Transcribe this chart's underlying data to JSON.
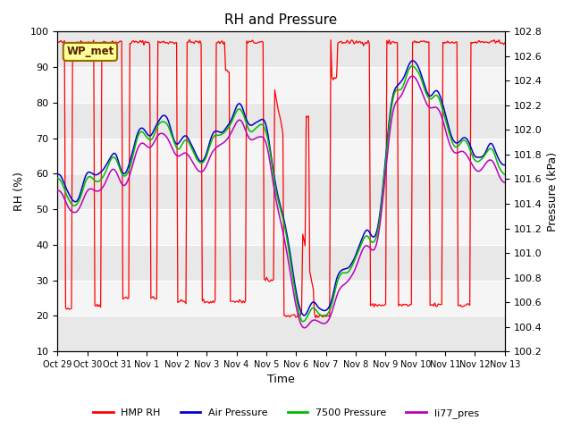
{
  "title": "RH and Pressure",
  "xlabel": "Time",
  "ylabel_left": "RH (%)",
  "ylabel_right": "Pressure (kPa)",
  "ylim_left": [
    10,
    100
  ],
  "ylim_right": [
    100.2,
    102.8
  ],
  "x_tick_labels": [
    "Oct 29",
    "Oct 30",
    "Oct 31",
    "Nov 1",
    "Nov 2",
    "Nov 3",
    "Nov 4",
    "Nov 5",
    "Nov 6",
    "Nov 7",
    "Nov 8",
    "Nov 9",
    "Nov 10",
    "Nov 11",
    "Nov 12",
    "Nov 13"
  ],
  "legend_entries": [
    "HMP RH",
    "Air Pressure",
    "7500 Pressure",
    "li77_pres"
  ],
  "line_colors": [
    "#ff0000",
    "#0000cc",
    "#00bb00",
    "#bb00bb"
  ],
  "annotation_text": "WP_met",
  "annotation_box_color": "#ffff99",
  "annotation_box_edge": "#996600",
  "background_color": "#ffffff",
  "plot_bg_color": "#e8e8e8",
  "band_color1": "#e8e8e8",
  "band_color2": "#f5f5f5",
  "title_fontsize": 11,
  "label_fontsize": 9,
  "tick_fontsize": 8
}
